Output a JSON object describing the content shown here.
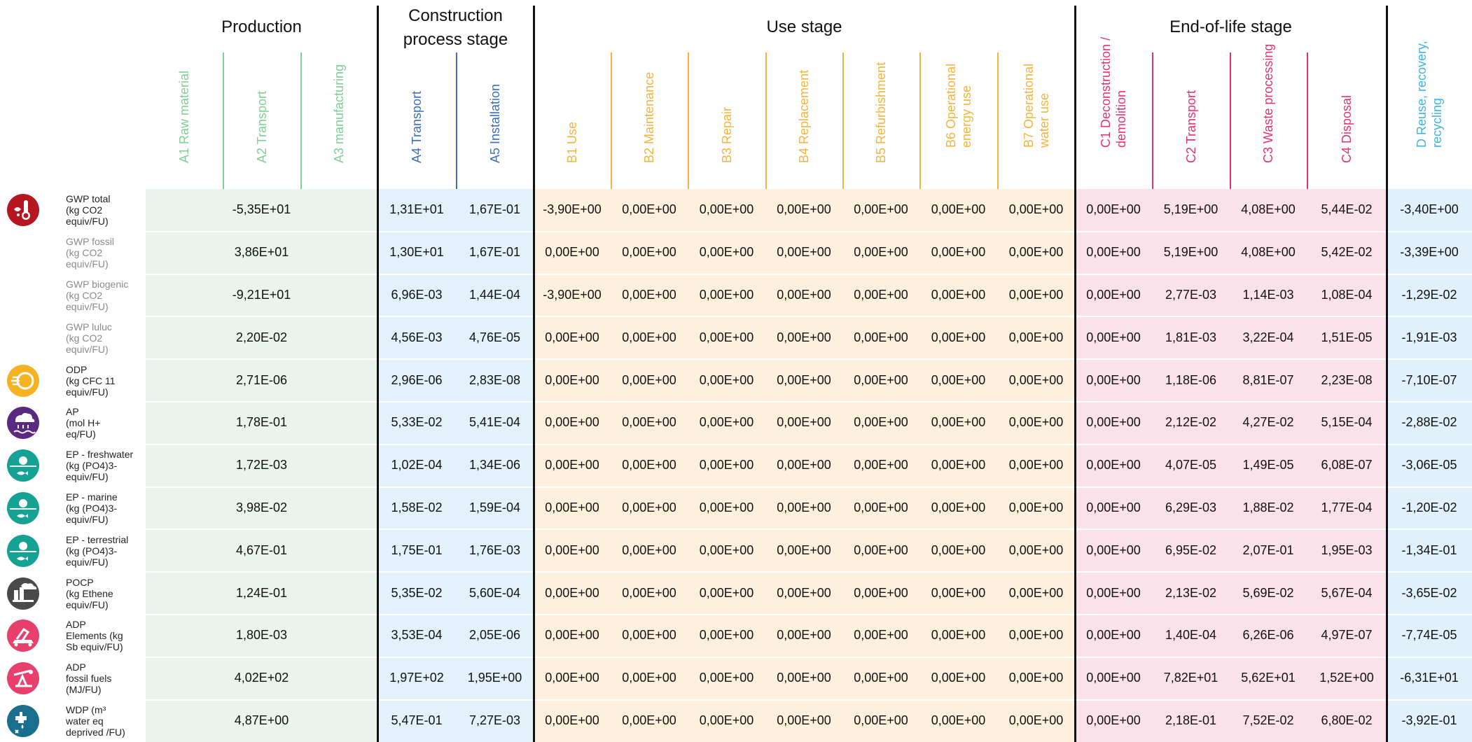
{
  "stages": [
    {
      "key": "production",
      "title": "Production",
      "color": "#eaf4ed"
    },
    {
      "key": "construction",
      "title": "Construction\nprocess stage",
      "color": "#e3f1fb"
    },
    {
      "key": "use",
      "title": "Use stage",
      "color": "#fdf1dd"
    },
    {
      "key": "eol",
      "title": "End-of-life stage",
      "color": "#fbe1e9"
    },
    {
      "key": "d",
      "title": "",
      "color": "#e0f1fb"
    }
  ],
  "modules": [
    {
      "label": "A1 Raw material",
      "color": "#7fcf97"
    },
    {
      "label": "A2 Transport",
      "color": "#7fcf97"
    },
    {
      "label": "A3 manufacturing",
      "color": "#7fcf97"
    },
    {
      "label": "A4 Transport",
      "color": "#3c6fb5"
    },
    {
      "label": "A5 Installation",
      "color": "#3c6fb5"
    },
    {
      "label": "B1 Use",
      "color": "#f3b43e"
    },
    {
      "label": "B2 Maintenance",
      "color": "#f3b43e"
    },
    {
      "label": "B3 Repair",
      "color": "#f3b43e"
    },
    {
      "label": "B4 Replacement",
      "color": "#f3b43e"
    },
    {
      "label": "B5 Refurbishment",
      "color": "#f3b43e"
    },
    {
      "label": "B6 Operational\nenergy use",
      "color": "#f3b43e"
    },
    {
      "label": "B7 Operational\nwater use",
      "color": "#f3b43e"
    },
    {
      "label": "C1 Deconstruction /\ndemolition",
      "color": "#e3336b"
    },
    {
      "label": "C2 Transport",
      "color": "#e3336b"
    },
    {
      "label": "C3 Waste processing",
      "color": "#e3336b"
    },
    {
      "label": "C4 Disposal",
      "color": "#e3336b"
    },
    {
      "label": "D Reuse, recovery,\nrecycling",
      "color": "#42b3e0"
    }
  ],
  "rows": [
    {
      "label": "GWP total\n(kg CO2\nequiv/FU)",
      "bold": true,
      "icon": "thermometer-icon",
      "icon_color": "#b5161f",
      "values": [
        "-5,35E+01",
        "1,31E+01",
        "1,67E-01",
        "-3,90E+00",
        "0,00E+00",
        "0,00E+00",
        "0,00E+00",
        "0,00E+00",
        "0,00E+00",
        "0,00E+00",
        "0,00E+00",
        "5,19E+00",
        "4,08E+00",
        "5,44E-02",
        "-3,40E+00"
      ]
    },
    {
      "label": "GWP fossil\n(kg CO2\nequiv/FU)",
      "bold": false,
      "icon": "",
      "icon_color": "",
      "values": [
        "3,86E+01",
        "1,30E+01",
        "1,67E-01",
        "0,00E+00",
        "0,00E+00",
        "0,00E+00",
        "0,00E+00",
        "0,00E+00",
        "0,00E+00",
        "0,00E+00",
        "0,00E+00",
        "5,19E+00",
        "4,08E+00",
        "5,42E-02",
        "-3,39E+00"
      ]
    },
    {
      "label": "GWP biogenic\n(kg CO2\nequiv/FU)",
      "bold": false,
      "icon": "",
      "icon_color": "",
      "values": [
        "-9,21E+01",
        "6,96E-03",
        "1,44E-04",
        "-3,90E+00",
        "0,00E+00",
        "0,00E+00",
        "0,00E+00",
        "0,00E+00",
        "0,00E+00",
        "0,00E+00",
        "0,00E+00",
        "2,77E-03",
        "1,14E-03",
        "1,08E-04",
        "-1,29E-02"
      ]
    },
    {
      "label": "GWP luluc\n(kg CO2\nequiv/FU)",
      "bold": false,
      "icon": "",
      "icon_color": "",
      "values": [
        "2,20E-02",
        "4,56E-03",
        "4,76E-05",
        "0,00E+00",
        "0,00E+00",
        "0,00E+00",
        "0,00E+00",
        "0,00E+00",
        "0,00E+00",
        "0,00E+00",
        "0,00E+00",
        "1,81E-03",
        "3,22E-04",
        "1,51E-05",
        "-1,91E-03"
      ]
    },
    {
      "label": "ODP\n(kg CFC 11\nequiv/FU)",
      "bold": true,
      "icon": "ozone-icon",
      "icon_color": "#f5b324",
      "values": [
        "2,71E-06",
        "2,96E-06",
        "2,83E-08",
        "0,00E+00",
        "0,00E+00",
        "0,00E+00",
        "0,00E+00",
        "0,00E+00",
        "0,00E+00",
        "0,00E+00",
        "0,00E+00",
        "1,18E-06",
        "8,81E-07",
        "2,23E-08",
        "-7,10E-07"
      ]
    },
    {
      "label": "AP\n(mol H+\neq/FU)",
      "bold": true,
      "icon": "acid-rain-icon",
      "icon_color": "#5a2a82",
      "values": [
        "1,78E-01",
        "5,33E-02",
        "5,41E-04",
        "0,00E+00",
        "0,00E+00",
        "0,00E+00",
        "0,00E+00",
        "0,00E+00",
        "0,00E+00",
        "0,00E+00",
        "0,00E+00",
        "2,12E-02",
        "4,27E-02",
        "5,15E-04",
        "-2,88E-02"
      ]
    },
    {
      "label": "EP - freshwater\n(kg (PO4)3-\nequiv/FU)",
      "bold": true,
      "icon": "eutrophication-icon",
      "icon_color": "#15a193",
      "values": [
        "1,72E-03",
        "1,02E-04",
        "1,34E-06",
        "0,00E+00",
        "0,00E+00",
        "0,00E+00",
        "0,00E+00",
        "0,00E+00",
        "0,00E+00",
        "0,00E+00",
        "0,00E+00",
        "4,07E-05",
        "1,49E-05",
        "6,08E-07",
        "-3,06E-05"
      ]
    },
    {
      "label": "EP - marine\n(kg (PO4)3-\nequiv/FU)",
      "bold": true,
      "icon": "eutrophication-icon",
      "icon_color": "#15a193",
      "values": [
        "3,98E-02",
        "1,58E-02",
        "1,59E-04",
        "0,00E+00",
        "0,00E+00",
        "0,00E+00",
        "0,00E+00",
        "0,00E+00",
        "0,00E+00",
        "0,00E+00",
        "0,00E+00",
        "6,29E-03",
        "1,88E-02",
        "1,77E-04",
        "-1,20E-02"
      ]
    },
    {
      "label": "EP - terrestrial\n(kg (PO4)3-\nequiv/FU)",
      "bold": true,
      "icon": "eutrophication-icon",
      "icon_color": "#15a193",
      "values": [
        "4,67E-01",
        "1,75E-01",
        "1,76E-03",
        "0,00E+00",
        "0,00E+00",
        "0,00E+00",
        "0,00E+00",
        "0,00E+00",
        "0,00E+00",
        "0,00E+00",
        "0,00E+00",
        "6,95E-02",
        "2,07E-01",
        "1,95E-03",
        "-1,34E-01"
      ]
    },
    {
      "label": "POCP\n(kg Ethene\nequiv/FU)",
      "bold": true,
      "icon": "smog-icon",
      "icon_color": "#4a4a4a",
      "values": [
        "1,24E-01",
        "5,35E-02",
        "5,60E-04",
        "0,00E+00",
        "0,00E+00",
        "0,00E+00",
        "0,00E+00",
        "0,00E+00",
        "0,00E+00",
        "0,00E+00",
        "0,00E+00",
        "2,13E-02",
        "5,69E-02",
        "5,67E-04",
        "-3,65E-02"
      ]
    },
    {
      "label": "ADP\nElements (kg\nSb equiv/FU)",
      "bold": true,
      "icon": "mining-icon",
      "icon_color": "#e8406d",
      "values": [
        "1,80E-03",
        "3,53E-04",
        "2,05E-06",
        "0,00E+00",
        "0,00E+00",
        "0,00E+00",
        "0,00E+00",
        "0,00E+00",
        "0,00E+00",
        "0,00E+00",
        "0,00E+00",
        "1,40E-04",
        "6,26E-06",
        "4,97E-07",
        "-7,74E-05"
      ]
    },
    {
      "label": "ADP\nfossil fuels\n(MJ/FU)",
      "bold": true,
      "icon": "oil-pump-icon",
      "icon_color": "#e8406d",
      "values": [
        "4,02E+02",
        "1,97E+02",
        "1,95E+00",
        "0,00E+00",
        "0,00E+00",
        "0,00E+00",
        "0,00E+00",
        "0,00E+00",
        "0,00E+00",
        "0,00E+00",
        "0,00E+00",
        "7,82E+01",
        "5,62E+01",
        "1,52E+00",
        "-6,31E+01"
      ]
    },
    {
      "label": "WDP (m³\nwater eq\ndeprived /FU)",
      "bold": true,
      "icon": "water-tap-icon",
      "icon_color": "#1a6e8e",
      "values": [
        "4,87E+00",
        "5,47E-01",
        "7,27E-03",
        "0,00E+00",
        "0,00E+00",
        "0,00E+00",
        "0,00E+00",
        "0,00E+00",
        "0,00E+00",
        "0,00E+00",
        "0,00E+00",
        "2,18E-01",
        "7,52E-02",
        "6,80E-02",
        "-3,92E-01"
      ]
    }
  ]
}
